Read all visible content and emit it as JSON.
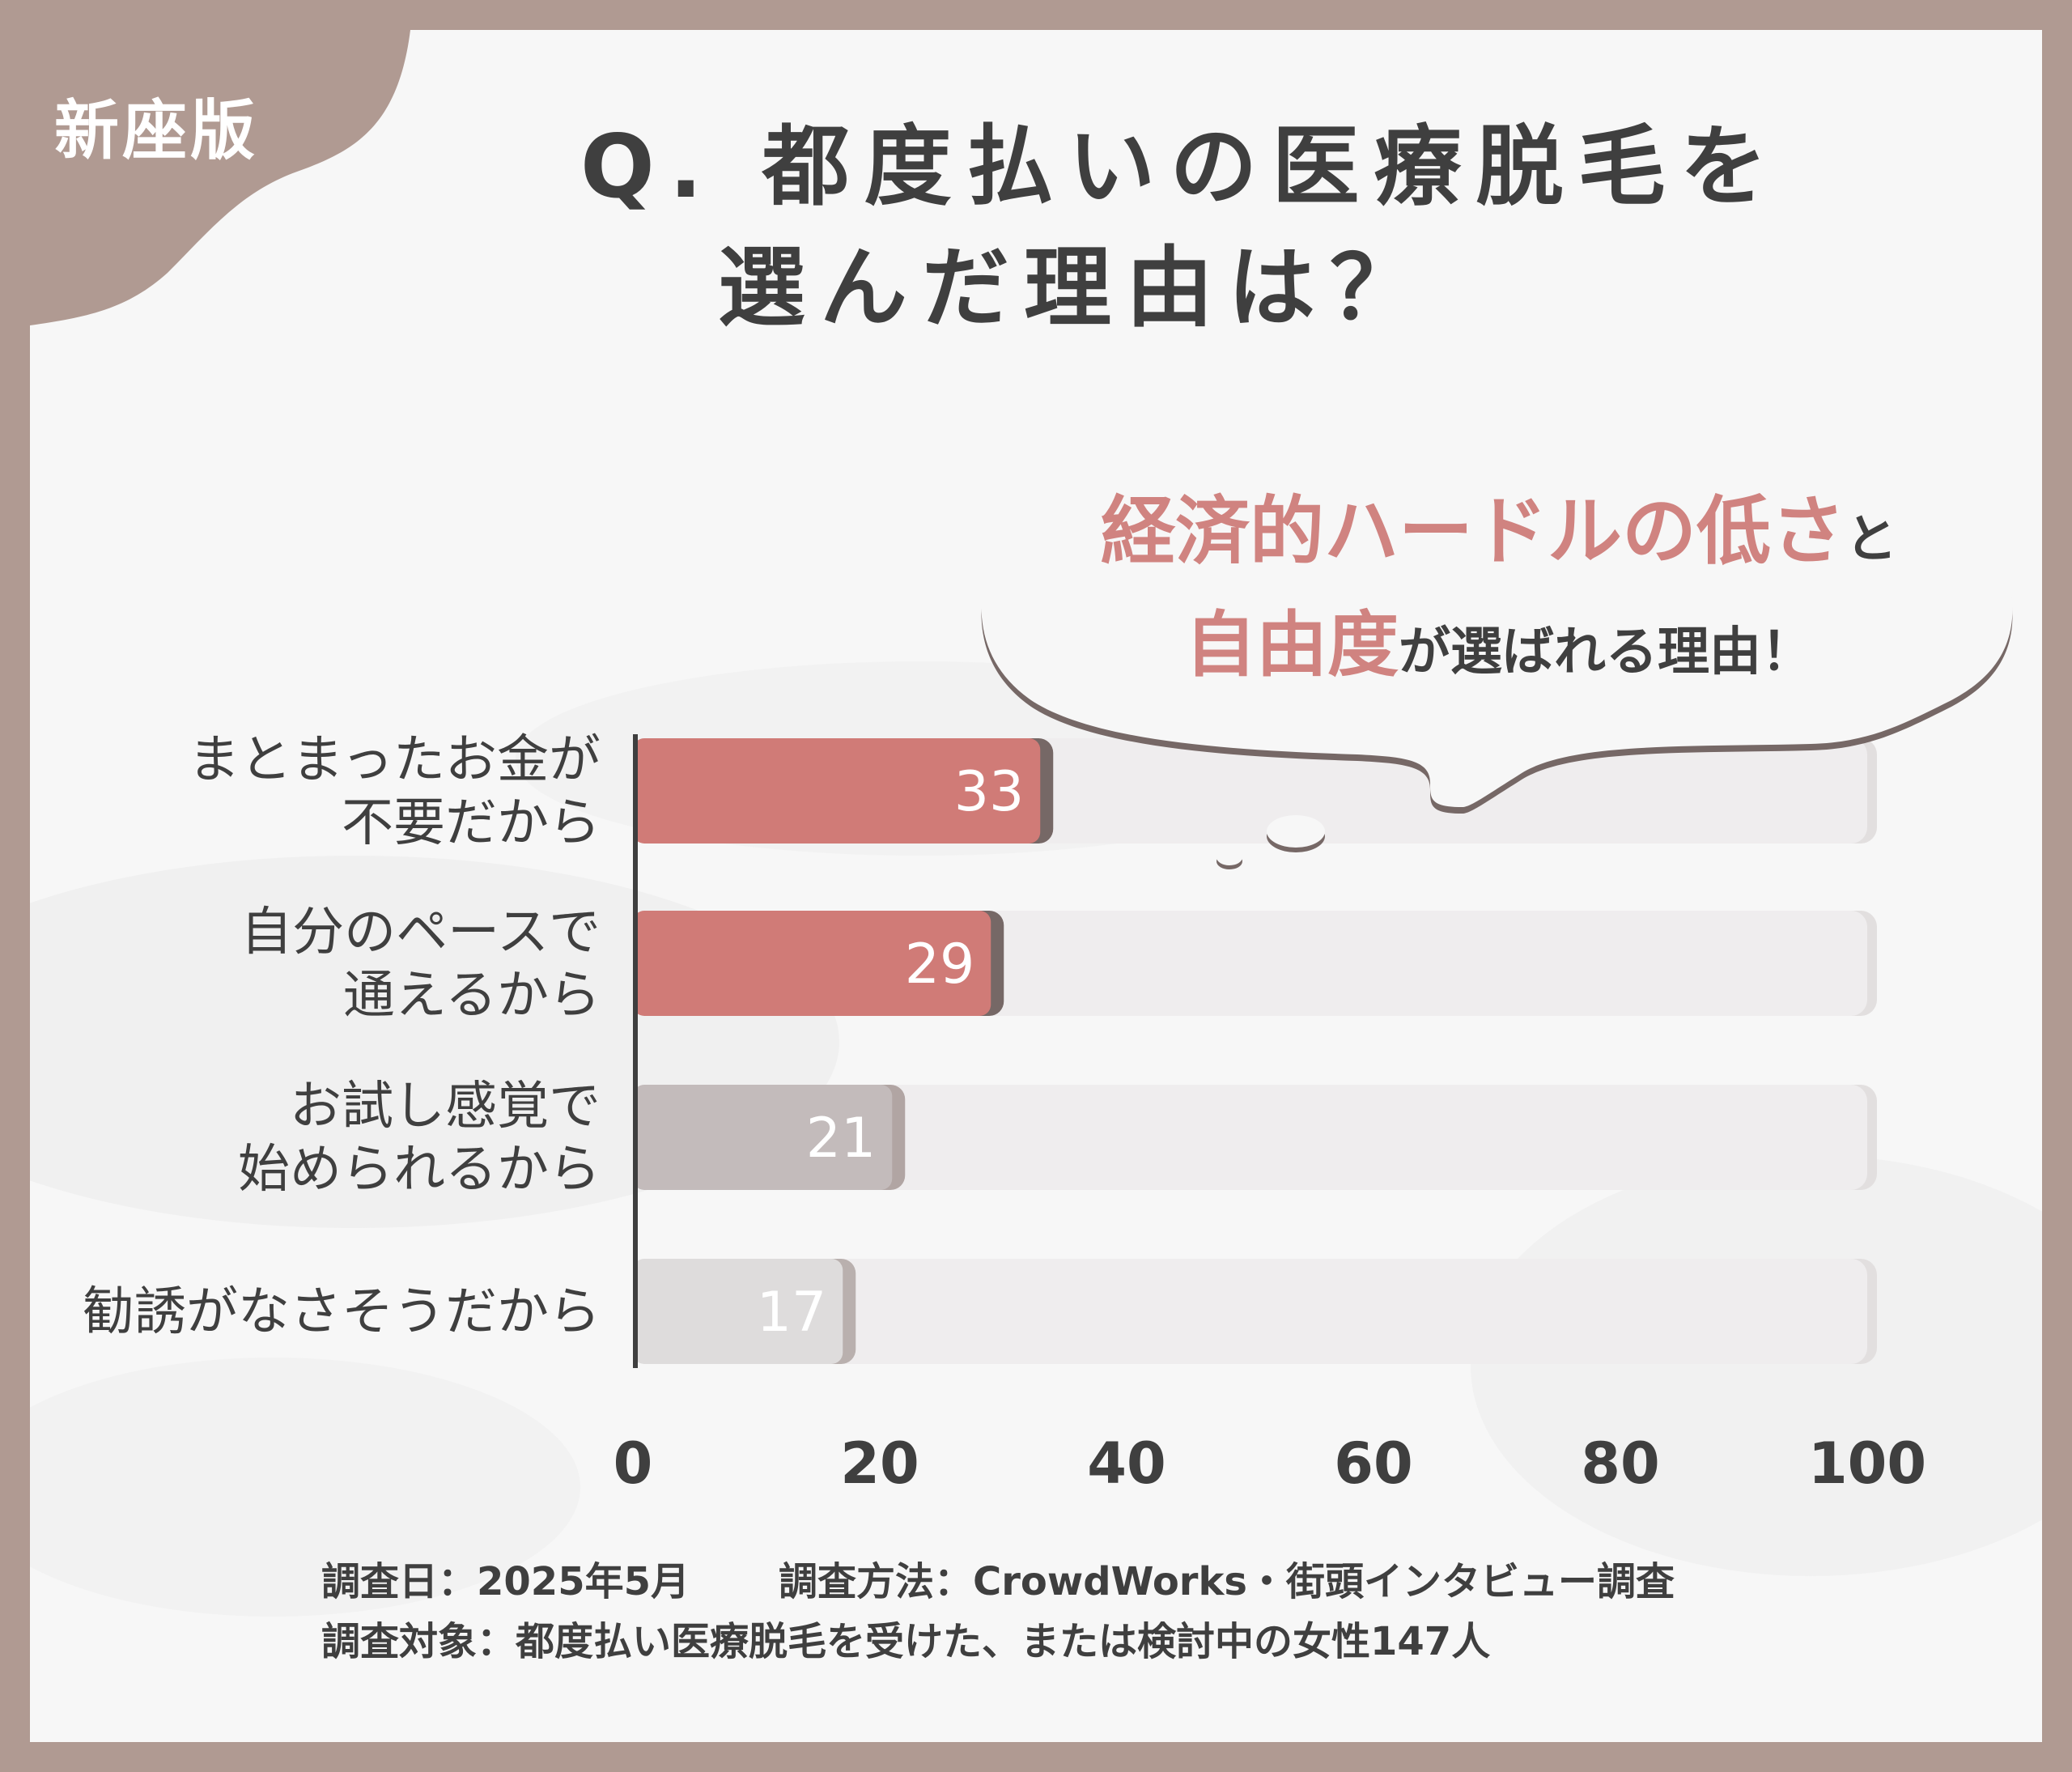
{
  "badge": "新座版",
  "title": {
    "line1": "Q. 都度払いの医療脱毛を",
    "line2": "選んだ理由は？"
  },
  "bubble": {
    "highlight1": "経済的ハードルの低さ",
    "text1": "と",
    "highlight2": "自由度",
    "text2": "が選ばれる理由！"
  },
  "colors": {
    "frame": "#b09a92",
    "accent": "#d07b77",
    "accent_shadow": "#766866",
    "gray_bar": "#c3bbbb",
    "light_bar": "#dedcdc",
    "track": "#efedee",
    "text": "#3f3f3f"
  },
  "chart_data": {
    "type": "bar",
    "orientation": "horizontal",
    "title": "Q. 都度払いの医療脱毛を選んだ理由は？",
    "xlabel": "",
    "ylabel": "",
    "xlim": [
      0,
      100
    ],
    "ticks": [
      "0",
      "20",
      "40",
      "60",
      "80",
      "100"
    ],
    "tick_values": [
      0,
      20,
      40,
      60,
      80,
      100
    ],
    "categories": [
      [
        "まとまったお金が",
        "不要だから"
      ],
      [
        "自分のペースで",
        "通えるから"
      ],
      [
        "お試し感覚で",
        "始められるから"
      ],
      [
        "勧誘がなさそうだから"
      ]
    ],
    "values": [
      33,
      29,
      21,
      17
    ],
    "value_labels": [
      "33",
      "29",
      "21",
      "17"
    ],
    "bar_styles": [
      "accent",
      "accent",
      "gray",
      "light"
    ],
    "grid": false,
    "legend": "none"
  },
  "notes": {
    "date": "調査日：2025年5月",
    "method": "調査方法：CrowdWorks・街頭インタビュー調査",
    "target": "調査対象：都度払い医療脱毛を受けた、または検討中の女性147人"
  }
}
